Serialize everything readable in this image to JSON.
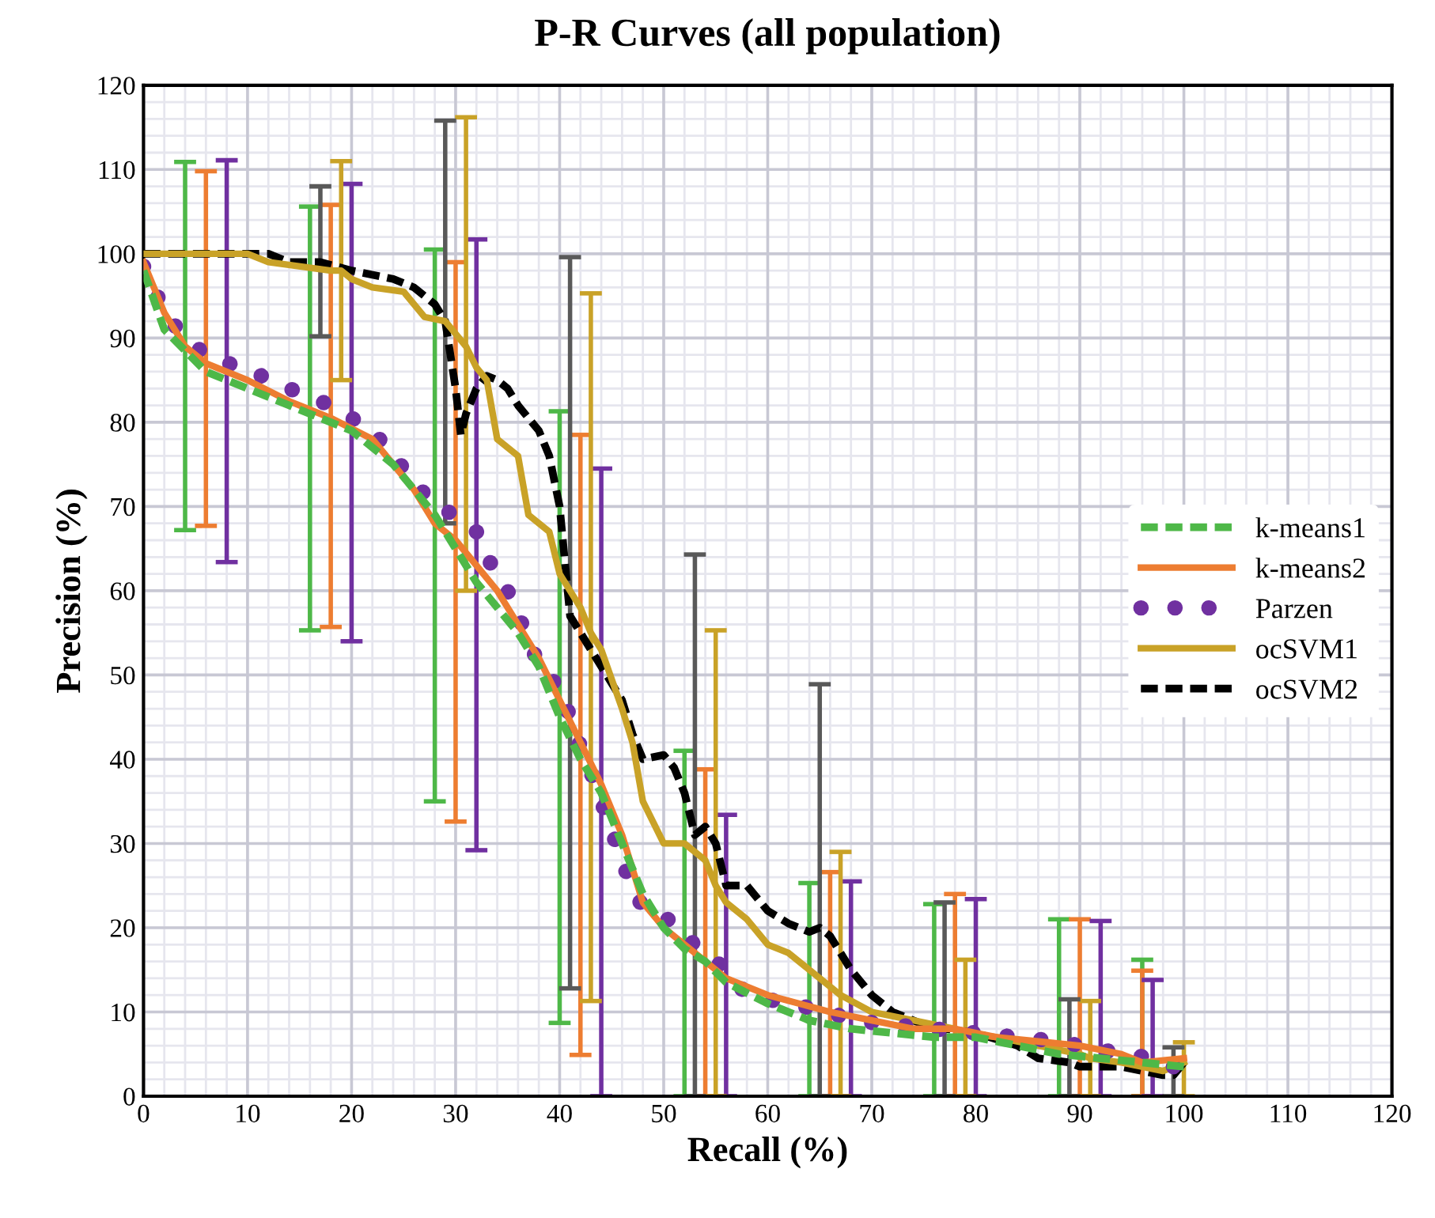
{
  "chart_data": {
    "type": "line",
    "title": "P-R Curves (all population)",
    "xlabel": "Recall (%)",
    "ylabel": "Precision (%)",
    "xlim": [
      0,
      120
    ],
    "xticks": [
      0,
      10,
      20,
      30,
      40,
      50,
      60,
      70,
      80,
      90,
      100,
      110,
      120
    ],
    "ylim": [
      0,
      120
    ],
    "yticks": [
      0,
      10,
      20,
      30,
      40,
      50,
      60,
      70,
      80,
      90,
      100,
      110,
      120
    ],
    "grid": true,
    "legend": "right",
    "series": [
      {
        "name": "k-means1",
        "color": "#4eb848",
        "line_style": "dashed",
        "x": [
          0,
          2,
          4,
          6,
          10,
          14,
          16,
          20,
          24,
          28,
          30,
          32,
          36,
          38,
          40,
          42,
          44,
          46,
          48,
          50,
          52,
          54,
          56,
          60,
          64,
          68,
          72,
          76,
          80,
          84,
          88,
          92,
          96,
          100
        ],
        "values": [
          98,
          91,
          88.5,
          86,
          84,
          82,
          81,
          79,
          75,
          69,
          65,
          61,
          55,
          51,
          45,
          40,
          36,
          30,
          24,
          20,
          17.5,
          16,
          13.5,
          11,
          9,
          8,
          7.5,
          7,
          7,
          6,
          5,
          4.5,
          4,
          3.5
        ],
        "errors": [
          null,
          null,
          [
            67.2,
            110.9
          ],
          null,
          null,
          null,
          [
            55.3,
            105.6
          ],
          null,
          null,
          [
            35,
            100.5
          ],
          null,
          null,
          null,
          null,
          [
            8.7,
            81.3
          ],
          null,
          null,
          null,
          null,
          null,
          [
            0,
            41
          ],
          null,
          null,
          null,
          [
            0,
            25.3
          ],
          null,
          null,
          [
            0,
            22.8
          ],
          null,
          null,
          [
            0,
            21
          ],
          null,
          [
            0,
            16.2
          ],
          null
        ]
      },
      {
        "name": "k-means2",
        "color": "#ed7d31",
        "line_style": "solid",
        "x": [
          0,
          2,
          4,
          6,
          10,
          14,
          18,
          22,
          26,
          28,
          30,
          34,
          38,
          40,
          42,
          44,
          46,
          48,
          50,
          52,
          54,
          56,
          60,
          66,
          70,
          74,
          78,
          82,
          86,
          90,
          94,
          96,
          100
        ],
        "values": [
          99,
          93,
          89,
          87,
          85,
          82.5,
          80.5,
          78,
          72,
          68,
          66,
          60,
          52,
          47,
          42,
          37,
          31,
          23,
          20,
          18,
          16,
          14,
          12,
          10,
          9,
          8,
          8,
          7,
          6.5,
          6,
          5,
          4,
          4.5
        ],
        "errors": [
          null,
          null,
          null,
          [
            67.7,
            109.8
          ],
          null,
          null,
          [
            55.7,
            105.8
          ],
          null,
          null,
          null,
          [
            32.6,
            99
          ],
          null,
          null,
          null,
          [
            4.9,
            78.5
          ],
          null,
          null,
          null,
          null,
          null,
          [
            0,
            38.8
          ],
          null,
          null,
          [
            0,
            26.6
          ],
          null,
          null,
          [
            0,
            24
          ],
          null,
          null,
          [
            0,
            21
          ],
          null,
          [
            0,
            14.9
          ],
          null
        ]
      },
      {
        "name": "Parzen",
        "color": "#7030a0",
        "line_style": "dotted",
        "x": [
          0,
          1,
          2,
          4,
          6,
          8,
          10,
          12,
          14,
          16,
          18,
          20,
          22,
          24,
          26,
          28,
          30,
          32,
          33,
          35,
          36,
          37,
          38,
          40,
          41,
          42,
          43,
          44,
          45,
          46,
          47,
          48,
          50,
          52,
          54,
          56,
          58,
          60,
          62,
          64,
          66,
          68,
          72,
          76,
          80,
          84,
          88,
          92,
          97,
          99
        ],
        "values": [
          98.5,
          96,
          93,
          90,
          88,
          87,
          86.5,
          85,
          84,
          83,
          82,
          80.5,
          79,
          76,
          73,
          70,
          69,
          67,
          64,
          60,
          57,
          54.5,
          51,
          48.5,
          45,
          41.5,
          38.5,
          35,
          31.5,
          28,
          24.5,
          22.5,
          21.5,
          19,
          17,
          15,
          12,
          11.5,
          11,
          10.5,
          10,
          9,
          8.5,
          8,
          7.5,
          7,
          6.5,
          5.5,
          4.5,
          3.5
        ],
        "errors": [
          null,
          null,
          null,
          null,
          null,
          [
            63.4,
            111.1
          ],
          null,
          null,
          null,
          null,
          null,
          [
            54,
            108.3
          ],
          null,
          null,
          null,
          null,
          null,
          [
            29.2,
            101.7
          ],
          null,
          null,
          null,
          null,
          null,
          null,
          null,
          null,
          null,
          [
            0,
            74.5
          ],
          null,
          null,
          null,
          null,
          null,
          null,
          null,
          [
            0,
            33.4
          ],
          null,
          null,
          null,
          null,
          null,
          [
            0,
            25.5
          ],
          null,
          null,
          [
            0,
            23.4
          ],
          null,
          null,
          [
            0,
            20.8
          ],
          [
            0,
            13.8
          ],
          null
        ]
      },
      {
        "name": "ocSVM1",
        "color": "#c9a227",
        "line_style": "solid",
        "x": [
          0,
          10,
          12,
          18,
          19,
          20,
          22,
          25,
          27,
          29,
          31,
          32,
          33,
          34,
          36,
          37,
          39,
          40,
          42,
          43,
          44,
          46,
          47,
          48,
          50,
          52,
          54,
          55,
          56,
          58,
          60,
          62,
          64,
          66,
          67,
          70,
          74,
          78,
          79,
          82,
          86,
          90,
          91,
          94,
          98,
          100
        ],
        "values": [
          100,
          100,
          99,
          98,
          98,
          97,
          96,
          95.5,
          92.5,
          92,
          89,
          86.5,
          85,
          78,
          76,
          69,
          67,
          62,
          58,
          55,
          53,
          46,
          42,
          35,
          30,
          30,
          28,
          25,
          23,
          21,
          18,
          17,
          15,
          13,
          12,
          10,
          9,
          8,
          7.5,
          7,
          6,
          5,
          4.5,
          4,
          3,
          4
        ],
        "errors": [
          null,
          null,
          null,
          null,
          [
            85,
            111
          ],
          null,
          null,
          null,
          null,
          null,
          [
            60,
            116.2
          ],
          null,
          null,
          null,
          null,
          null,
          null,
          null,
          null,
          [
            11.3,
            95.3
          ],
          null,
          null,
          null,
          null,
          null,
          null,
          null,
          [
            0,
            55.3
          ],
          null,
          null,
          null,
          null,
          null,
          null,
          [
            0,
            29
          ],
          null,
          null,
          null,
          [
            0,
            16.2
          ],
          null,
          null,
          null,
          [
            0,
            11.3
          ],
          null,
          null,
          [
            0,
            6.4
          ]
        ]
      },
      {
        "name": "ocSVM2",
        "color": "#000000",
        "line_style": "dashed",
        "x": [
          0,
          12,
          14,
          17,
          20,
          24,
          26,
          28,
          29,
          30,
          30.5,
          31,
          32,
          33,
          34,
          35,
          36,
          38,
          39,
          40,
          41,
          42,
          44,
          46,
          47,
          48,
          50,
          51,
          52,
          53,
          54,
          55,
          56,
          58,
          60,
          62,
          64,
          65,
          66,
          68,
          70,
          72,
          74,
          76,
          77,
          80,
          84,
          86,
          89,
          90,
          94,
          96,
          98,
          99,
          100
        ],
        "values": [
          100,
          100,
          99,
          99,
          98,
          97,
          96,
          94,
          92,
          84,
          78.5,
          81,
          84,
          85.5,
          85,
          84,
          82,
          79,
          76,
          70,
          57,
          55,
          51,
          47,
          43,
          40,
          40.5,
          39,
          36,
          31,
          32,
          30,
          25,
          25,
          22,
          20.5,
          19.5,
          20,
          19,
          15,
          12,
          10,
          9,
          8,
          8,
          7.5,
          6,
          4.5,
          4,
          3.5,
          3.5,
          3,
          2.5,
          2.5,
          4
        ],
        "errors": [
          null,
          null,
          null,
          [
            90.2,
            108
          ],
          null,
          null,
          null,
          null,
          [
            68,
            115.8
          ],
          null,
          null,
          null,
          null,
          null,
          null,
          null,
          null,
          null,
          null,
          null,
          [
            12.8,
            99.6
          ],
          null,
          null,
          null,
          null,
          null,
          null,
          null,
          null,
          [
            0,
            64.3
          ],
          null,
          null,
          null,
          null,
          null,
          null,
          null,
          [
            0,
            48.9
          ],
          null,
          null,
          null,
          null,
          null,
          null,
          [
            0,
            23
          ],
          null,
          null,
          null,
          [
            0,
            11.5
          ],
          null,
          null,
          null,
          null,
          [
            0,
            5.8
          ],
          null
        ]
      }
    ]
  }
}
